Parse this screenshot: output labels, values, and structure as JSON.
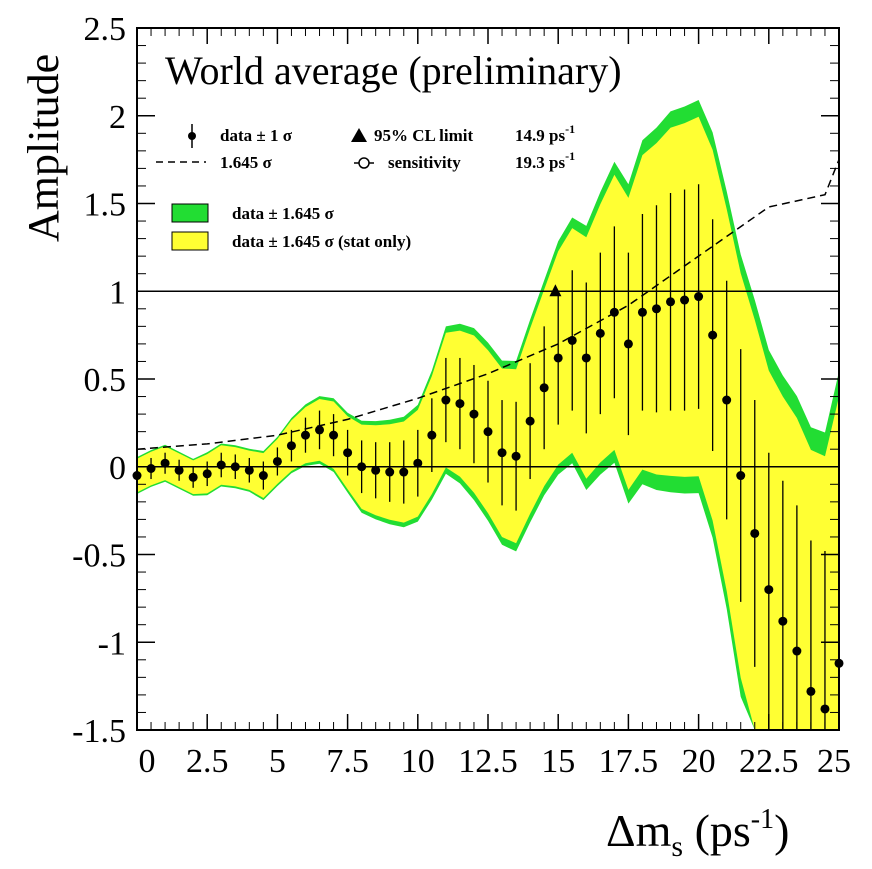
{
  "chart_data": {
    "type": "line",
    "title": "World average (preliminary)",
    "xlabel_main": "Δm",
    "xlabel_sub": "s",
    "xlabel_unit_open": " (ps",
    "xlabel_unit_exp": "-1",
    "xlabel_unit_close": ")",
    "ylabel": "Amplitude",
    "xlim": [
      0,
      25
    ],
    "ylim": [
      -1.5,
      2.5
    ],
    "x_ticks": [
      "0",
      "2.5",
      "5",
      "7.5",
      "10",
      "12.5",
      "15",
      "17.5",
      "20",
      "22.5",
      "25"
    ],
    "y_ticks": [
      "-1.5",
      "-1",
      "-0.5",
      "0",
      "0.5",
      "1",
      "1.5",
      "2",
      "2.5"
    ],
    "reference_lines": [
      0,
      1
    ],
    "legend": {
      "data_1sigma": "data ± 1 σ",
      "sigma_1645": "1.645 σ",
      "cl_limit_label": "95% CL limit",
      "cl_limit_value": "14.9 ps",
      "sensitivity_label": "sensitivity",
      "sensitivity_value": "19.3 ps",
      "unit_exp": "-1",
      "band_green": "data ± 1.645 σ",
      "band_yellow": "data ± 1.645 σ (stat only)"
    },
    "colors": {
      "green_band": "#22dd33",
      "yellow_band": "#ffff33",
      "points": "#000000"
    },
    "cl_limit_marker": {
      "x": 14.9,
      "y": 1.0
    },
    "amplitude": {
      "x": [
        0,
        0.5,
        1.0,
        1.5,
        2.0,
        2.5,
        3.0,
        3.5,
        4.0,
        4.5,
        5.0,
        5.5,
        6.0,
        6.5,
        7.0,
        7.5,
        8.0,
        8.5,
        9.0,
        9.5,
        10.0,
        10.5,
        11.0,
        11.5,
        12.0,
        12.5,
        13.0,
        13.5,
        14.0,
        14.5,
        15.0,
        15.5,
        16.0,
        16.5,
        17.0,
        17.5,
        18.0,
        18.5,
        19.0,
        19.5,
        20.0,
        20.5,
        21.0,
        21.5,
        22.0,
        22.5,
        23.0,
        23.5,
        24.0,
        24.5,
        25.0
      ],
      "value": [
        -0.05,
        -0.01,
        0.02,
        -0.02,
        -0.06,
        -0.04,
        0.01,
        0.0,
        -0.02,
        -0.05,
        0.03,
        0.12,
        0.18,
        0.21,
        0.18,
        0.08,
        0.0,
        -0.02,
        -0.03,
        -0.03,
        0.02,
        0.18,
        0.38,
        0.36,
        0.3,
        0.2,
        0.08,
        0.06,
        0.26,
        0.45,
        0.62,
        0.72,
        0.62,
        0.76,
        0.88,
        0.7,
        0.88,
        0.9,
        0.94,
        0.95,
        0.97,
        0.75,
        0.38,
        -0.05,
        -0.38,
        -0.7,
        -0.88,
        -1.05,
        -1.28,
        -1.38,
        -1.12
      ],
      "err": [
        0.06,
        0.06,
        0.06,
        0.06,
        0.06,
        0.07,
        0.07,
        0.07,
        0.07,
        0.08,
        0.08,
        0.09,
        0.1,
        0.11,
        0.12,
        0.13,
        0.15,
        0.16,
        0.17,
        0.18,
        0.19,
        0.21,
        0.24,
        0.26,
        0.28,
        0.29,
        0.3,
        0.31,
        0.33,
        0.35,
        0.38,
        0.4,
        0.43,
        0.46,
        0.49,
        0.52,
        0.56,
        0.59,
        0.62,
        0.63,
        0.64,
        0.66,
        0.68,
        0.72,
        0.76,
        0.78,
        0.8,
        0.83,
        0.86,
        0.9,
        0.95
      ]
    },
    "sensitivity_1645": {
      "x": [
        0,
        2.5,
        5,
        7.5,
        10,
        12.5,
        15,
        17.5,
        20,
        22.5,
        24.5,
        25
      ],
      "value": [
        0.1,
        0.13,
        0.18,
        0.27,
        0.39,
        0.53,
        0.7,
        0.92,
        1.2,
        1.48,
        1.55,
        1.75
      ]
    }
  }
}
